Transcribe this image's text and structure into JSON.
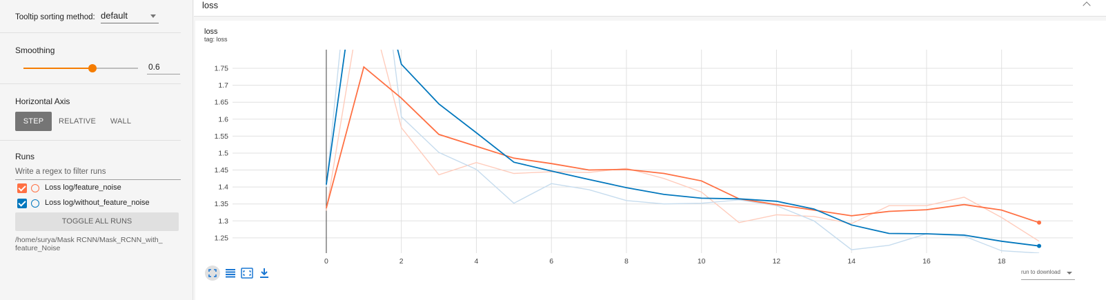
{
  "sidebar": {
    "tooltip_label": "Tooltip sorting method:",
    "tooltip_value": "default",
    "smoothing_label": "Smoothing",
    "smoothing_value": "0.6",
    "smoothing_fraction": 0.6,
    "axis_label": "Horizontal Axis",
    "axis_options": [
      "STEP",
      "RELATIVE",
      "WALL"
    ],
    "runs_label": "Runs",
    "runs_filter_placeholder": "Write a regex to filter runs",
    "runs": [
      {
        "name": "Loss log/feature_noise",
        "color": "#ff7043",
        "checked": true
      },
      {
        "name": "Loss log/without_feature_noise",
        "color": "#0277bd",
        "checked": true
      }
    ],
    "toggle_all_label": "TOGGLE ALL RUNS",
    "run_path": "/home/surya/Mask RCNN/Mask_RCNN_with_ feature_Noise"
  },
  "header": {
    "title": "loss"
  },
  "card": {
    "title": "loss",
    "tag": "tag: loss",
    "run_download_label": "run to download",
    "tools": [
      "fit-icon",
      "data-table-icon",
      "zoom-select-icon",
      "download-icon"
    ]
  },
  "chart_data": {
    "type": "line",
    "title": "loss",
    "xlabel": "",
    "ylabel": "",
    "xlim": [
      -2.5,
      19.9
    ],
    "ylim": [
      1.205,
      1.805
    ],
    "x_ticks": [
      0,
      2,
      4,
      6,
      8,
      10,
      12,
      14,
      16,
      18
    ],
    "y_ticks": [
      1.25,
      1.3,
      1.35,
      1.4,
      1.45,
      1.5,
      1.55,
      1.6,
      1.65,
      1.7,
      1.75
    ],
    "y_tick_labels": [
      "1.25",
      "1.3",
      "1.35",
      "1.4",
      "1.45",
      "1.5",
      "1.55",
      "1.6",
      "1.65",
      "1.7",
      "1.75"
    ],
    "grid": true,
    "series": [
      {
        "name": "Loss log/feature_noise",
        "color": "#ff7043",
        "raw_color": "#ffccbc",
        "x": [
          0,
          1,
          2,
          3,
          4,
          5,
          6,
          7,
          8,
          9,
          10,
          11,
          12,
          13,
          14,
          15,
          16,
          17,
          18,
          19
        ],
        "raw": [
          1.33,
          2.0,
          1.575,
          1.436,
          1.472,
          1.44,
          1.445,
          1.443,
          1.455,
          1.425,
          1.385,
          1.295,
          1.318,
          1.313,
          1.292,
          1.345,
          1.345,
          1.37,
          1.31,
          1.24
        ],
        "smoothed": [
          1.338,
          1.754,
          1.662,
          1.555,
          1.52,
          1.485,
          1.469,
          1.45,
          1.452,
          1.44,
          1.418,
          1.365,
          1.348,
          1.332,
          1.315,
          1.328,
          1.333,
          1.348,
          1.332,
          1.295
        ]
      },
      {
        "name": "Loss log/without_feature_noise",
        "color": "#0277bd",
        "raw_color": "#c6dcee",
        "x": [
          0,
          1,
          2,
          3,
          4,
          5,
          6,
          7,
          8,
          9,
          10,
          11,
          12,
          13,
          14,
          15,
          16,
          17,
          18,
          19
        ],
        "raw": [
          1.4,
          2.5,
          1.607,
          1.502,
          1.452,
          1.352,
          1.41,
          1.392,
          1.36,
          1.35,
          1.352,
          1.362,
          1.345,
          1.3,
          1.215,
          1.228,
          1.262,
          1.255,
          1.212,
          1.205
        ],
        "smoothed": [
          1.407,
          2.2,
          1.762,
          1.645,
          1.56,
          1.473,
          1.447,
          1.422,
          1.398,
          1.378,
          1.367,
          1.365,
          1.358,
          1.335,
          1.288,
          1.263,
          1.262,
          1.258,
          1.24,
          1.226
        ]
      }
    ]
  }
}
